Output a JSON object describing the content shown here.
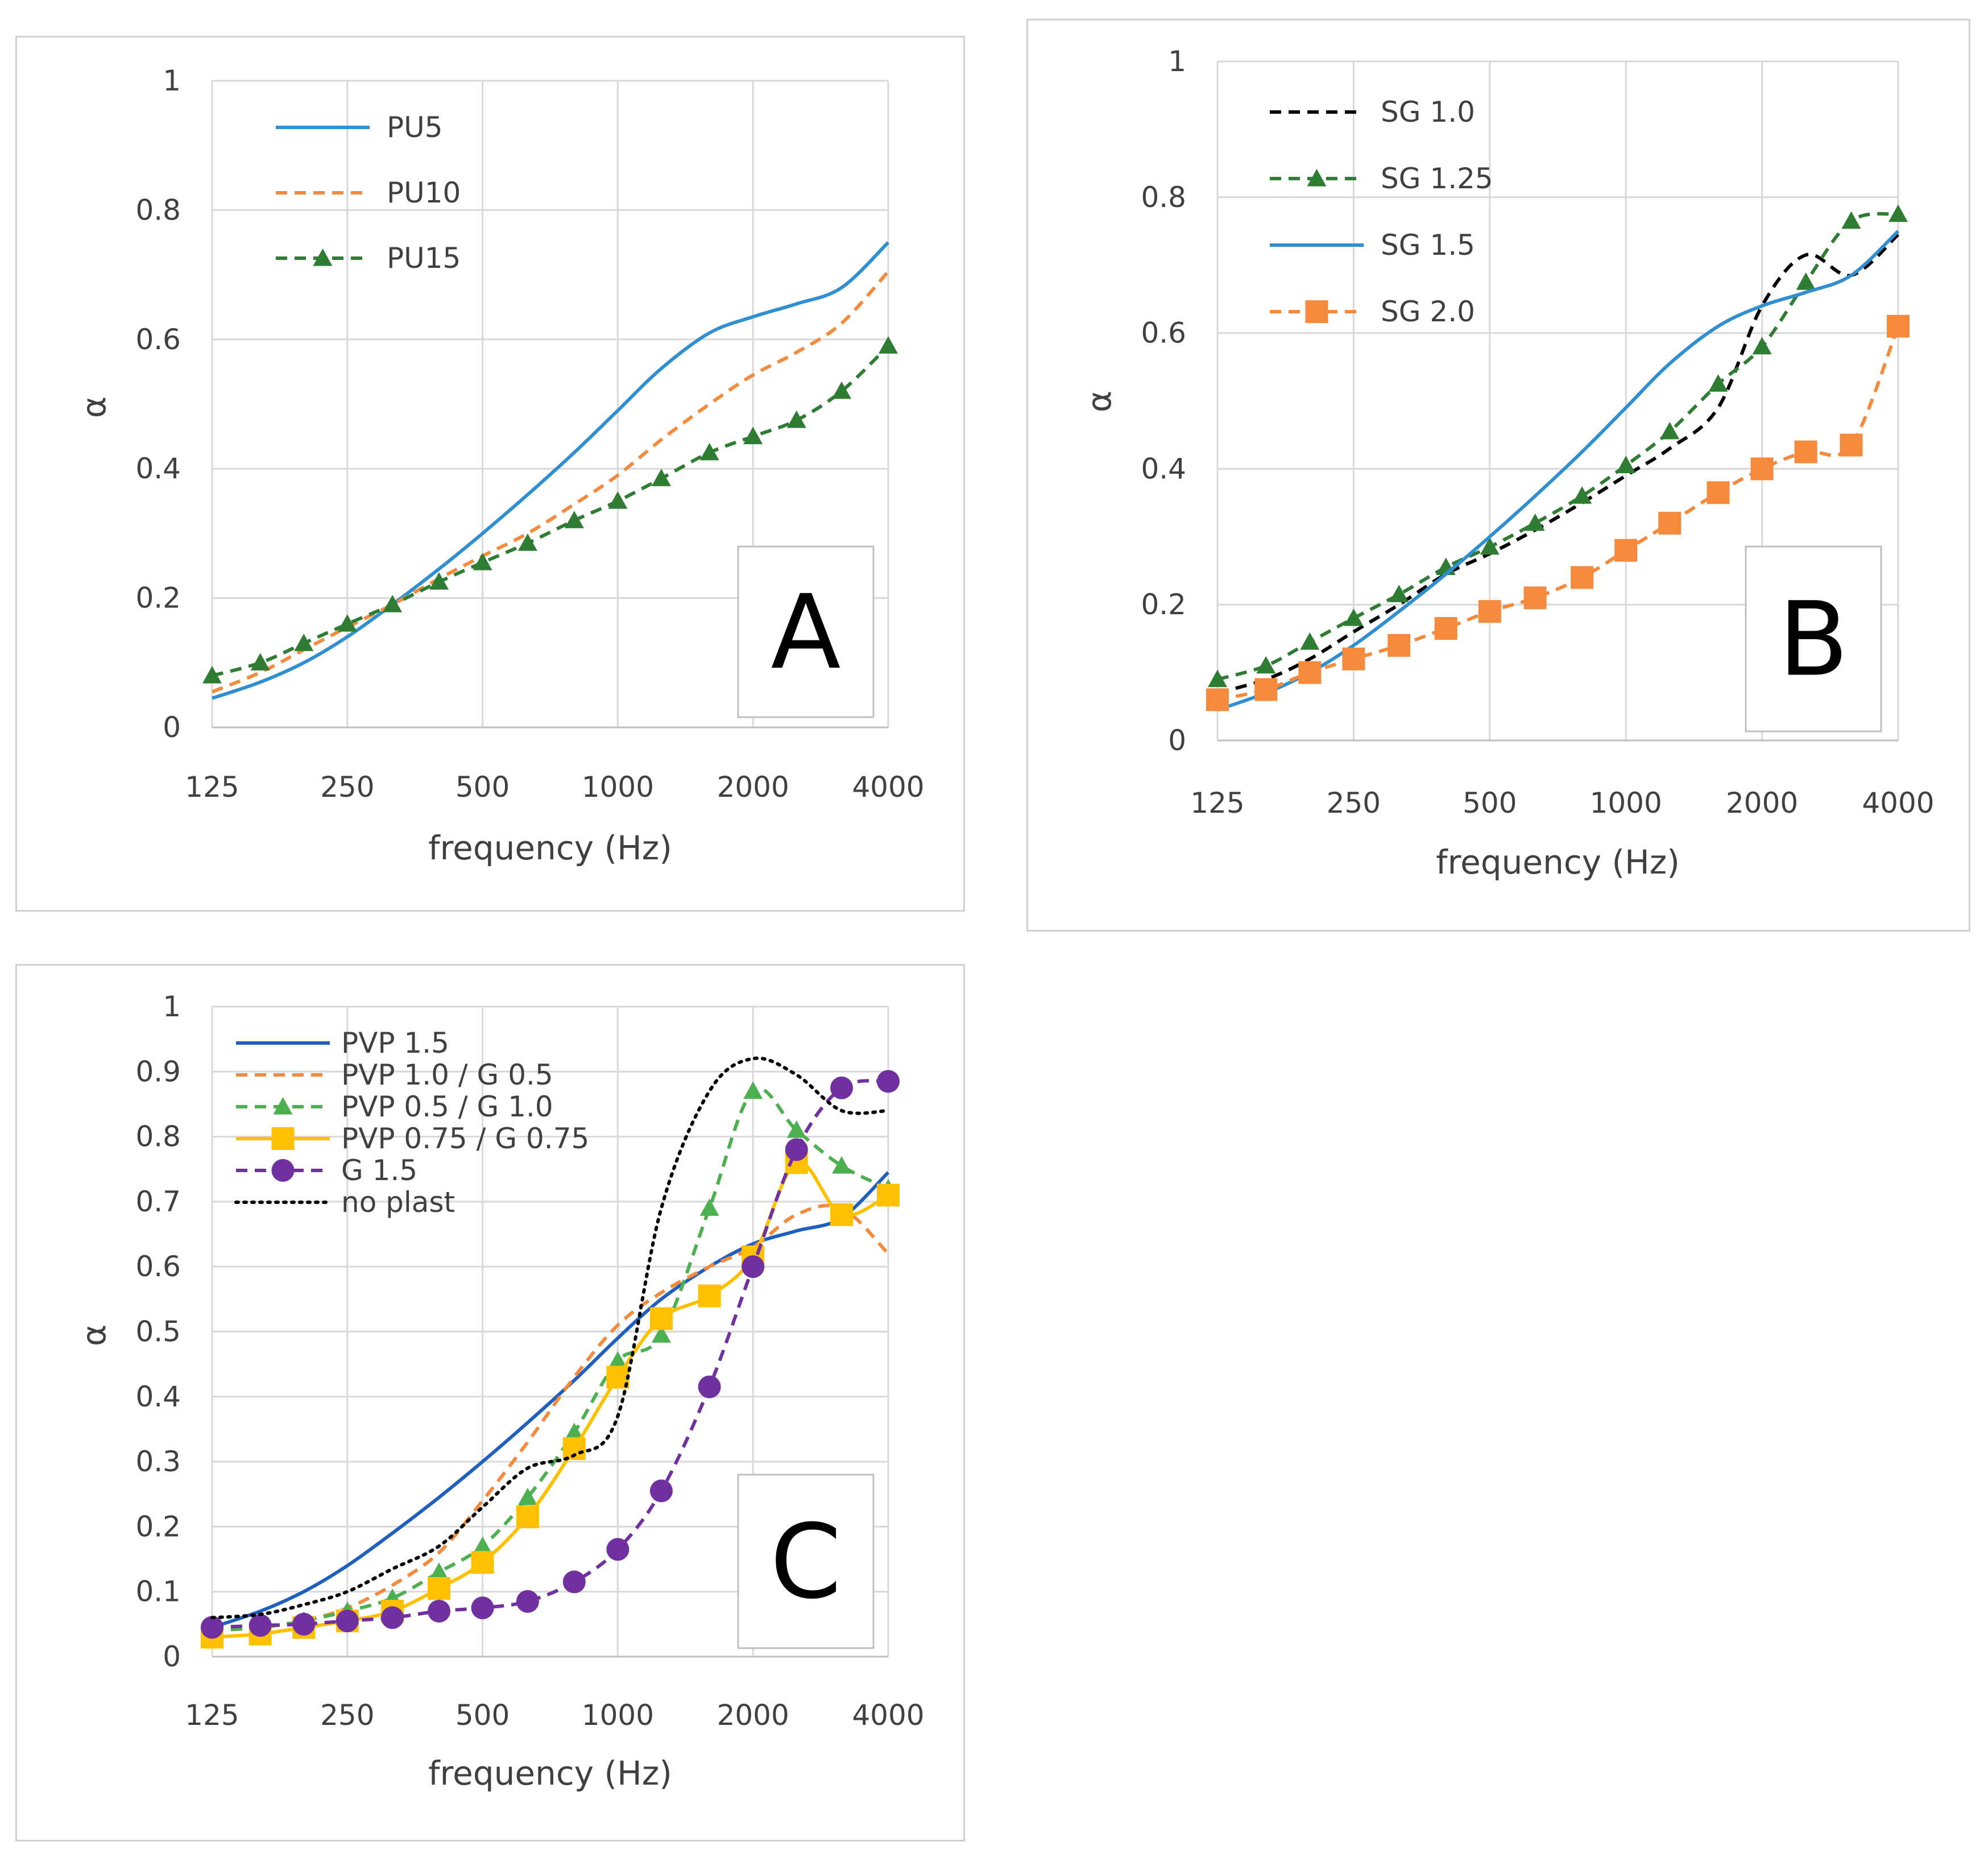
{
  "chart_data": [
    {
      "type": "line",
      "panel_letter": "A",
      "xlabel": "frequency (Hz)",
      "ylabel": "α",
      "x_scale": "log",
      "x": [
        125,
        160,
        200,
        250,
        315,
        400,
        500,
        630,
        800,
        1000,
        1250,
        1600,
        2000,
        2500,
        3150,
        4000
      ],
      "x_ticks": [
        "125",
        "250",
        "500",
        "1000",
        "2000",
        "4000"
      ],
      "x_tick_values": [
        125,
        250,
        500,
        1000,
        2000,
        4000
      ],
      "ylim": [
        0,
        1
      ],
      "y_ticks": [
        "0",
        "0.2",
        "0.4",
        "0.6",
        "0.8",
        "1"
      ],
      "y_tick_values": [
        0,
        0.2,
        0.4,
        0.6,
        0.8,
        1
      ],
      "legend_position": "top-left",
      "series": [
        {
          "name": "PU5",
          "color": "#2f8fd1",
          "dash": "",
          "marker": "none",
          "values": [
            0.045,
            0.07,
            0.1,
            0.14,
            0.19,
            0.245,
            0.3,
            0.36,
            0.425,
            0.49,
            0.555,
            0.61,
            0.635,
            0.655,
            0.68,
            0.75
          ]
        },
        {
          "name": "PU10",
          "color": "#f58a3c",
          "dash": "20,13",
          "marker": "none",
          "values": [
            0.055,
            0.085,
            0.12,
            0.155,
            0.19,
            0.23,
            0.265,
            0.3,
            0.345,
            0.39,
            0.445,
            0.5,
            0.545,
            0.58,
            0.625,
            0.705
          ]
        },
        {
          "name": "PU15",
          "color": "#2e7d32",
          "dash": "20,13",
          "marker": "triangle",
          "values": [
            0.08,
            0.1,
            0.13,
            0.16,
            0.19,
            0.225,
            0.255,
            0.285,
            0.32,
            0.35,
            0.385,
            0.425,
            0.45,
            0.475,
            0.52,
            0.59
          ]
        }
      ]
    },
    {
      "type": "line",
      "panel_letter": "B",
      "xlabel": "frequency (Hz)",
      "ylabel": "α",
      "x_scale": "log",
      "x": [
        125,
        160,
        200,
        250,
        315,
        400,
        500,
        630,
        800,
        1000,
        1250,
        1600,
        2000,
        2500,
        3150,
        4000
      ],
      "x_ticks": [
        "125",
        "250",
        "500",
        "1000",
        "2000",
        "4000"
      ],
      "x_tick_values": [
        125,
        250,
        500,
        1000,
        2000,
        4000
      ],
      "ylim": [
        0,
        1
      ],
      "y_ticks": [
        "0",
        "0.2",
        "0.4",
        "0.6",
        "0.8",
        "1"
      ],
      "y_tick_values": [
        0,
        0.2,
        0.4,
        0.6,
        0.8,
        1
      ],
      "legend_position": "top-left",
      "series": [
        {
          "name": "SG 1.0",
          "color": "#000000",
          "dash": "20,13",
          "marker": "none",
          "values": [
            0.07,
            0.09,
            0.12,
            0.16,
            0.2,
            0.245,
            0.275,
            0.31,
            0.35,
            0.39,
            0.43,
            0.49,
            0.64,
            0.715,
            0.685,
            0.745
          ]
        },
        {
          "name": "SG 1.25",
          "color": "#2e7d32",
          "dash": "20,13",
          "marker": "triangle",
          "values": [
            0.09,
            0.11,
            0.145,
            0.18,
            0.215,
            0.255,
            0.285,
            0.32,
            0.36,
            0.405,
            0.455,
            0.525,
            0.58,
            0.675,
            0.765,
            0.775
          ]
        },
        {
          "name": "SG 1.5",
          "color": "#2f8fd1",
          "dash": "",
          "marker": "none",
          "values": [
            0.045,
            0.07,
            0.1,
            0.14,
            0.19,
            0.245,
            0.3,
            0.36,
            0.425,
            0.49,
            0.555,
            0.61,
            0.64,
            0.66,
            0.685,
            0.75
          ]
        },
        {
          "name": "SG 2.0",
          "color": "#f58a3c",
          "dash": "20,13",
          "marker": "square",
          "values": [
            0.06,
            0.075,
            0.1,
            0.12,
            0.14,
            0.165,
            0.19,
            0.21,
            0.24,
            0.28,
            0.32,
            0.365,
            0.4,
            0.425,
            0.435,
            0.61
          ]
        }
      ]
    },
    {
      "type": "line",
      "panel_letter": "C",
      "xlabel": "frequency (Hz)",
      "ylabel": "α",
      "x_scale": "log",
      "x": [
        125,
        160,
        200,
        250,
        315,
        400,
        500,
        630,
        800,
        1000,
        1250,
        1600,
        2000,
        2500,
        3150,
        4000
      ],
      "x_ticks": [
        "125",
        "250",
        "500",
        "1000",
        "2000",
        "4000"
      ],
      "x_tick_values": [
        125,
        250,
        500,
        1000,
        2000,
        4000
      ],
      "ylim": [
        0,
        1
      ],
      "y_ticks": [
        "0",
        "0.1",
        "0.2",
        "0.3",
        "0.4",
        "0.5",
        "0.6",
        "0.7",
        "0.8",
        "0.9",
        "1"
      ],
      "y_tick_values": [
        0,
        0.1,
        0.2,
        0.3,
        0.4,
        0.5,
        0.6,
        0.7,
        0.8,
        0.9,
        1
      ],
      "legend_position": "top-left",
      "series": [
        {
          "name": "PVP 1.5",
          "color": "#1f5fbf",
          "dash": "",
          "marker": "none",
          "values": [
            0.045,
            0.07,
            0.1,
            0.14,
            0.19,
            0.245,
            0.3,
            0.36,
            0.425,
            0.49,
            0.55,
            0.6,
            0.635,
            0.655,
            0.675,
            0.745
          ]
        },
        {
          "name": "PVP 1.0 / G 0.5",
          "color": "#f58a3c",
          "dash": "20,13",
          "marker": "none",
          "values": [
            0.04,
            0.045,
            0.055,
            0.075,
            0.11,
            0.16,
            0.24,
            0.33,
            0.43,
            0.51,
            0.56,
            0.6,
            0.63,
            0.68,
            0.69,
            0.62
          ]
        },
        {
          "name": "PVP 0.5 / G 1.0",
          "color": "#4caf50",
          "dash": "20,13",
          "marker": "triangle",
          "values": [
            0.04,
            0.045,
            0.055,
            0.07,
            0.09,
            0.13,
            0.17,
            0.245,
            0.345,
            0.455,
            0.495,
            0.69,
            0.87,
            0.81,
            0.755,
            0.72
          ]
        },
        {
          "name": "PVP 0.75 / G 0.75",
          "color": "#ffc000",
          "dash": "",
          "marker": "square",
          "values": [
            0.03,
            0.035,
            0.045,
            0.055,
            0.07,
            0.105,
            0.145,
            0.215,
            0.32,
            0.43,
            0.52,
            0.555,
            0.615,
            0.76,
            0.68,
            0.71
          ]
        },
        {
          "name": "G 1.5",
          "color": "#7030a0",
          "dash": "20,13",
          "marker": "circle",
          "values": [
            0.045,
            0.048,
            0.05,
            0.055,
            0.06,
            0.07,
            0.075,
            0.085,
            0.115,
            0.165,
            0.255,
            0.415,
            0.6,
            0.78,
            0.875,
            0.885
          ]
        },
        {
          "name": "no plast",
          "color": "#000000",
          "dash": "4,10",
          "marker": "none",
          "values": [
            0.06,
            0.065,
            0.08,
            0.1,
            0.135,
            0.17,
            0.23,
            0.29,
            0.31,
            0.37,
            0.69,
            0.87,
            0.92,
            0.895,
            0.84,
            0.84
          ]
        }
      ]
    }
  ]
}
